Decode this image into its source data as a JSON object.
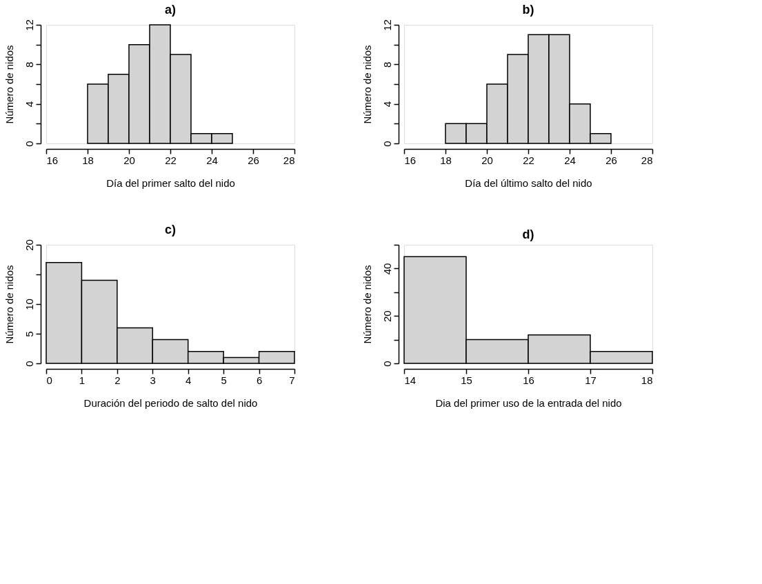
{
  "chart_data": [
    {
      "type": "histogram",
      "title": "a)",
      "xlabel": "Día del primer salto del nido",
      "ylabel": "Número de nidos",
      "bins": [
        18,
        19,
        20,
        21,
        22,
        23,
        24,
        25
      ],
      "values": [
        6,
        7,
        10,
        12,
        9,
        1,
        1
      ],
      "color": "#d3d3d3",
      "xlim": [
        16,
        28
      ],
      "xticks": [
        16,
        18,
        20,
        22,
        24,
        26,
        28
      ],
      "ylim": [
        0,
        12
      ],
      "yticks": [
        0,
        {
          "value": 2,
          "label": null
        },
        4,
        {
          "value": 6,
          "label": null
        },
        8,
        {
          "value": 10,
          "label": null
        },
        12
      ],
      "grid": false
    },
    {
      "type": "histogram",
      "title": "b)",
      "xlabel": "Día del último salto del nido",
      "ylabel": "Número de nidos",
      "bins": [
        18,
        19,
        20,
        21,
        22,
        23,
        24,
        25,
        26
      ],
      "values": [
        2,
        2,
        6,
        9,
        11,
        11,
        4,
        1
      ],
      "color": "#d3d3d3",
      "xlim": [
        16,
        28
      ],
      "xticks": [
        16,
        18,
        20,
        22,
        24,
        26,
        28
      ],
      "ylim": [
        0,
        12
      ],
      "yticks": [
        0,
        {
          "value": 2,
          "label": null
        },
        4,
        {
          "value": 6,
          "label": null
        },
        8,
        {
          "value": 10,
          "label": null
        },
        12
      ],
      "grid": false
    },
    {
      "type": "histogram",
      "title": "c)",
      "xlabel": "Duración del periodo de salto del nido",
      "ylabel": "Número de nidos",
      "bins": [
        0,
        1,
        2,
        3,
        4,
        5,
        6,
        7
      ],
      "values": [
        17,
        14,
        6,
        4,
        2,
        1,
        2
      ],
      "color": "#d3d3d3",
      "xlim": [
        0,
        7
      ],
      "xticks": [
        0,
        1,
        2,
        3,
        4,
        5,
        6,
        7
      ],
      "ylim": [
        0,
        20
      ],
      "yticks": [
        0,
        5,
        10,
        {
          "value": 15,
          "label": null
        },
        20
      ],
      "grid": false
    },
    {
      "type": "histogram",
      "title": "d)",
      "xlabel": "Dia del primer uso de la entrada del nido",
      "ylabel": "Número de nidos",
      "bins": [
        14,
        15,
        16,
        17,
        18
      ],
      "values": [
        45,
        10,
        12,
        5
      ],
      "color": "#d3d3d3",
      "xlim": [
        14,
        18
      ],
      "xticks": [
        14,
        15,
        16,
        17,
        18
      ],
      "ylim": [
        0,
        50
      ],
      "yticks": [
        0,
        {
          "value": 10,
          "label": null
        },
        20,
        {
          "value": 30,
          "label": null
        },
        40,
        {
          "value": 50,
          "label": null
        }
      ],
      "grid": false
    }
  ]
}
